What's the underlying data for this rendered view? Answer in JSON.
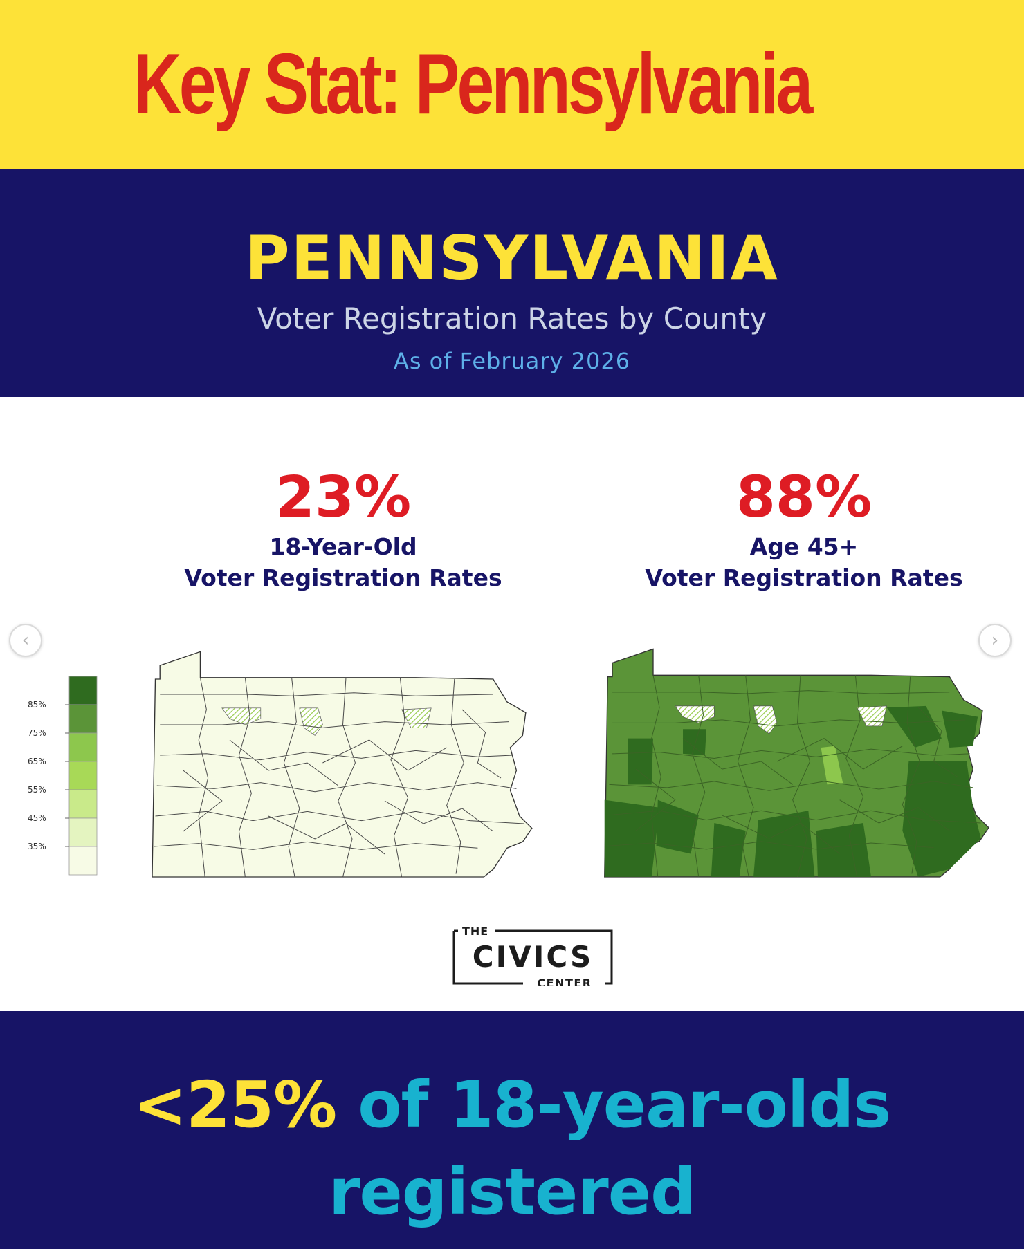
{
  "banner": {
    "headline": "Key Stat: Pennsylvania"
  },
  "title_band": {
    "state": "PENNSYLVANIA",
    "subtitle": "Voter Registration Rates by County",
    "date": "As of February 2026"
  },
  "stats": {
    "left": {
      "value": "23%",
      "label_line1": "18-Year-Old",
      "label_line2": "Voter Registration Rates"
    },
    "right": {
      "value": "88%",
      "label_line1": "Age 45+",
      "label_line2": "Voter Registration Rates"
    }
  },
  "legend": {
    "ticks": [
      "85%",
      "75%",
      "65%",
      "55%",
      "45%",
      "35%"
    ],
    "colors": [
      "#2f6b1f",
      "#5b9438",
      "#8dc74d",
      "#a8d957",
      "#c9ea8a",
      "#e4f4c0",
      "#f7fbe6"
    ]
  },
  "maps": {
    "left": {
      "fill": "#f7fbe6",
      "highlight_fill": "#d6ec9c"
    },
    "right": {
      "fill": "#5b9438",
      "dark_fill": "#2f6b1f",
      "light_fill": "#8dc74d",
      "highlight_fill": "#a8d957"
    }
  },
  "logo": {
    "the": "THE",
    "name": "CIVICS",
    "center": "CENTER"
  },
  "bottom": {
    "highlight": "<25%",
    "rest_line1": " of 18-year-olds",
    "line2": "registered"
  },
  "colors": {
    "banner_yellow": "#fde238",
    "headline_red": "#d9261c",
    "navy": "#171466",
    "stat_red": "#de1c24",
    "teal": "#18b2cf"
  },
  "icons": {
    "prev": "chevron-left-icon",
    "next": "chevron-right-icon"
  }
}
